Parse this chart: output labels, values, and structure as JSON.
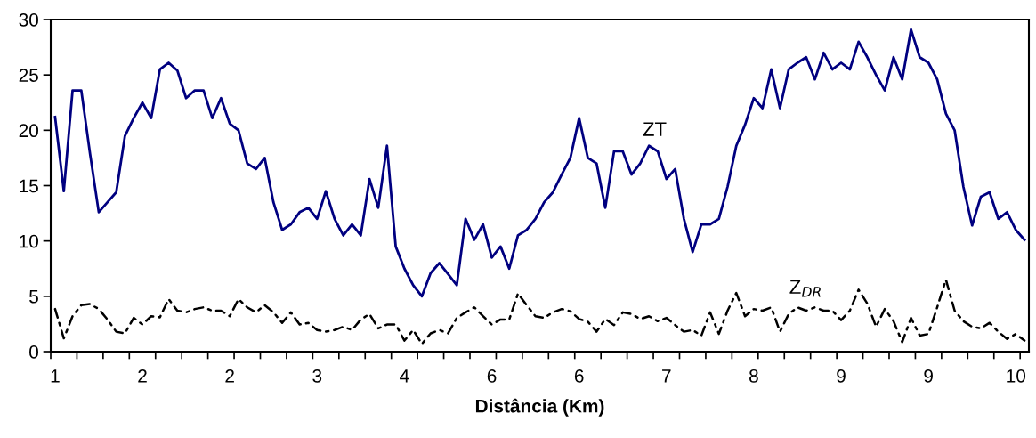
{
  "chart_data": {
    "type": "line",
    "xlabel": "Distância (Km)",
    "categories": [
      "1",
      null,
      null,
      null,
      null,
      null,
      null,
      null,
      null,
      null,
      "2",
      null,
      null,
      null,
      null,
      null,
      null,
      null,
      null,
      null,
      "2",
      null,
      null,
      null,
      null,
      null,
      null,
      null,
      null,
      null,
      "3",
      null,
      null,
      null,
      null,
      null,
      null,
      null,
      null,
      null,
      "4",
      null,
      null,
      null,
      null,
      null,
      null,
      null,
      null,
      null,
      "6",
      null,
      null,
      null,
      null,
      null,
      null,
      null,
      null,
      null,
      "6",
      null,
      null,
      null,
      null,
      null,
      null,
      null,
      null,
      null,
      "7",
      null,
      null,
      null,
      null,
      null,
      null,
      null,
      null,
      null,
      "8",
      null,
      null,
      null,
      null,
      null,
      null,
      null,
      null,
      null,
      "9",
      null,
      null,
      null,
      null,
      null,
      null,
      null,
      null,
      null,
      "9",
      null,
      null,
      null,
      null,
      null,
      null,
      null,
      null,
      null,
      "10",
      null
    ],
    "series": [
      {
        "name": "ZT",
        "color": "#000080",
        "line_style": "solid",
        "values": [
          21.2,
          14.5,
          23.6,
          23.6,
          17.9,
          12.6,
          13.5,
          14.4,
          19.5,
          21.1,
          22.5,
          21.1,
          25.5,
          26.1,
          25.4,
          22.9,
          23.6,
          23.6,
          21.1,
          22.9,
          20.6,
          20.0,
          17.0,
          16.5,
          17.5,
          13.5,
          11.0,
          11.5,
          12.6,
          13.0,
          12.0,
          14.5,
          12.0,
          10.5,
          11.5,
          10.5,
          15.6,
          13.0,
          18.6,
          9.5,
          7.5,
          6.0,
          5.0,
          7.1,
          8.0,
          7.0,
          6.0,
          12.0,
          10.1,
          11.5,
          8.5,
          9.5,
          7.5,
          10.5,
          11.0,
          12.0,
          13.5,
          14.4,
          16.0,
          17.5,
          21.1,
          17.5,
          17.0,
          13.0,
          18.1,
          18.1,
          16.0,
          17.0,
          18.6,
          18.1,
          15.6,
          16.5,
          12.0,
          9.0,
          11.5,
          11.5,
          12.0,
          14.9,
          18.6,
          20.5,
          22.9,
          22.0,
          25.5,
          22.0,
          25.5,
          26.1,
          26.6,
          24.6,
          27.0,
          25.5,
          26.1,
          25.5,
          28.0,
          26.6,
          25.0,
          23.6,
          26.6,
          24.6,
          29.1,
          26.6,
          26.1,
          24.6,
          21.5,
          20.0,
          14.9,
          11.4,
          14.0,
          14.4,
          12.0,
          12.6,
          11.0,
          10.1
        ]
      },
      {
        "name": "Z$_{DR}$",
        "color": "#000000",
        "line_style": "dashed",
        "values": [
          3.85,
          1.2,
          3.2,
          4.2,
          4.3,
          3.85,
          2.9,
          1.8,
          1.65,
          3.05,
          2.45,
          3.2,
          3.1,
          4.75,
          3.7,
          3.55,
          3.85,
          4.0,
          3.7,
          3.7,
          3.2,
          4.75,
          4.0,
          3.55,
          4.2,
          3.55,
          2.6,
          3.55,
          2.45,
          2.6,
          1.95,
          1.8,
          1.95,
          2.25,
          1.95,
          2.9,
          3.4,
          2.1,
          2.45,
          2.45,
          1.0,
          1.95,
          0.7,
          1.65,
          1.95,
          1.65,
          3.05,
          3.55,
          4.0,
          3.2,
          2.45,
          2.9,
          2.9,
          5.25,
          4.2,
          3.2,
          3.05,
          3.55,
          3.85,
          3.65,
          2.95,
          2.7,
          1.8,
          2.95,
          2.4,
          3.55,
          3.4,
          2.95,
          3.2,
          2.75,
          3.05,
          2.4,
          1.8,
          1.95,
          1.45,
          3.55,
          1.6,
          3.7,
          5.3,
          3.2,
          3.85,
          3.7,
          4.0,
          1.8,
          3.4,
          4.0,
          3.7,
          4.0,
          3.7,
          3.7,
          2.85,
          3.7,
          5.6,
          4.35,
          2.25,
          3.85,
          2.75,
          0.85,
          3.05,
          1.45,
          1.6,
          4.0,
          6.5,
          3.7,
          2.75,
          2.25,
          2.1,
          2.6,
          1.8,
          1.15,
          1.6,
          1.0
        ]
      }
    ],
    "ylim": [
      0,
      30
    ],
    "yticks": [
      0,
      5,
      10,
      15,
      20,
      25,
      30
    ],
    "grid": false,
    "legend": false,
    "marker": "none"
  }
}
